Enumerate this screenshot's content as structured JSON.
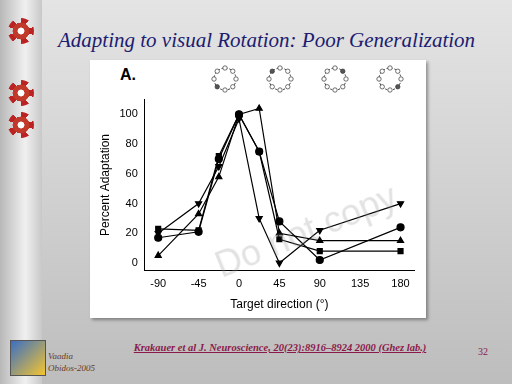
{
  "title": "Adapting to visual Rotation: Poor Generalization",
  "citation": "Krakauer et al J. Neuroscience, 20(23):8916–8924 2000 (Ghez lab.)",
  "page": "32",
  "footer": [
    "Vaadia",
    "Obidos-2005"
  ],
  "watermark": "Do not copy",
  "chart_data": {
    "type": "line",
    "annotations": [
      "A."
    ],
    "x_label": "Target direction (°)",
    "y_label": "Percent Adaptation",
    "series": [
      {
        "color": "#000000",
        "marker": "circle",
        "line_style": "solid",
        "x": [
          -90,
          -45,
          -22.5,
          0,
          22.5,
          45,
          90,
          180
        ],
        "values": [
          17,
          21,
          70,
          100,
          75,
          28,
          2,
          24
        ]
      },
      {
        "color": "#000000",
        "marker": "square",
        "line_style": "solid",
        "x": [
          -90,
          -45,
          -22.5,
          0,
          22.5,
          45,
          90,
          180
        ],
        "values": [
          23,
          22,
          72,
          100,
          75,
          16,
          8,
          8
        ]
      },
      {
        "color": "#000000",
        "marker": "triangle-up",
        "line_style": "solid",
        "x": [
          -90,
          -45,
          -22.5,
          0,
          22.5,
          45,
          90,
          180
        ],
        "values": [
          5,
          33,
          58,
          100,
          104,
          20,
          15,
          15
        ]
      },
      {
        "color": "#000000",
        "marker": "triangle-down",
        "line_style": "solid",
        "x": [
          -90,
          -45,
          -22.5,
          0,
          22.5,
          45,
          90,
          180
        ],
        "values": [
          20,
          40,
          65,
          97,
          30,
          0,
          22,
          40
        ]
      }
    ],
    "xlim": [
      -105,
      195
    ],
    "xticks": [
      -90,
      -45,
      0,
      45,
      90,
      135,
      180
    ],
    "ylim": [
      -5,
      110
    ],
    "yticks": [
      0,
      20,
      40,
      60,
      80,
      100
    ],
    "grid": false
  }
}
